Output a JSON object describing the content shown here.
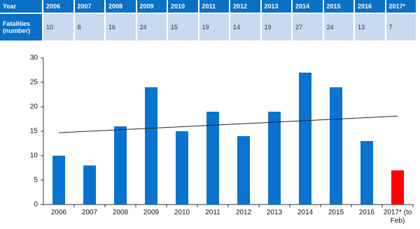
{
  "table": {
    "header": [
      "Year",
      "2006",
      "2007",
      "2008",
      "2009",
      "2010",
      "2011",
      "2012",
      "2013",
      "2014",
      "2015",
      "2016",
      "2017*"
    ],
    "rows": [
      [
        "Fatalities (number)",
        "10",
        "8",
        "16",
        "24",
        "15",
        "19",
        "14",
        "19",
        "27",
        "24",
        "13",
        "7"
      ]
    ]
  },
  "chart_data": {
    "type": "bar",
    "categories": [
      "2006",
      "2007",
      "2008",
      "2009",
      "2010",
      "2011",
      "2012",
      "2013",
      "2014",
      "2015",
      "2016",
      "2017* (to Feb)"
    ],
    "values": [
      10,
      8,
      16,
      24,
      15,
      19,
      14,
      19,
      27,
      24,
      13,
      7
    ],
    "colors": [
      "#0a73cf",
      "#0a73cf",
      "#0a73cf",
      "#0a73cf",
      "#0a73cf",
      "#0a73cf",
      "#0a73cf",
      "#0a73cf",
      "#0a73cf",
      "#0a73cf",
      "#0a73cf",
      "#ff0000"
    ],
    "trend_line": {
      "values": [
        14.7,
        18.1
      ],
      "color": "#222222"
    },
    "ylim": [
      0,
      30
    ],
    "yticks": [
      0,
      5,
      10,
      15,
      20,
      25,
      30
    ],
    "grid": false
  }
}
